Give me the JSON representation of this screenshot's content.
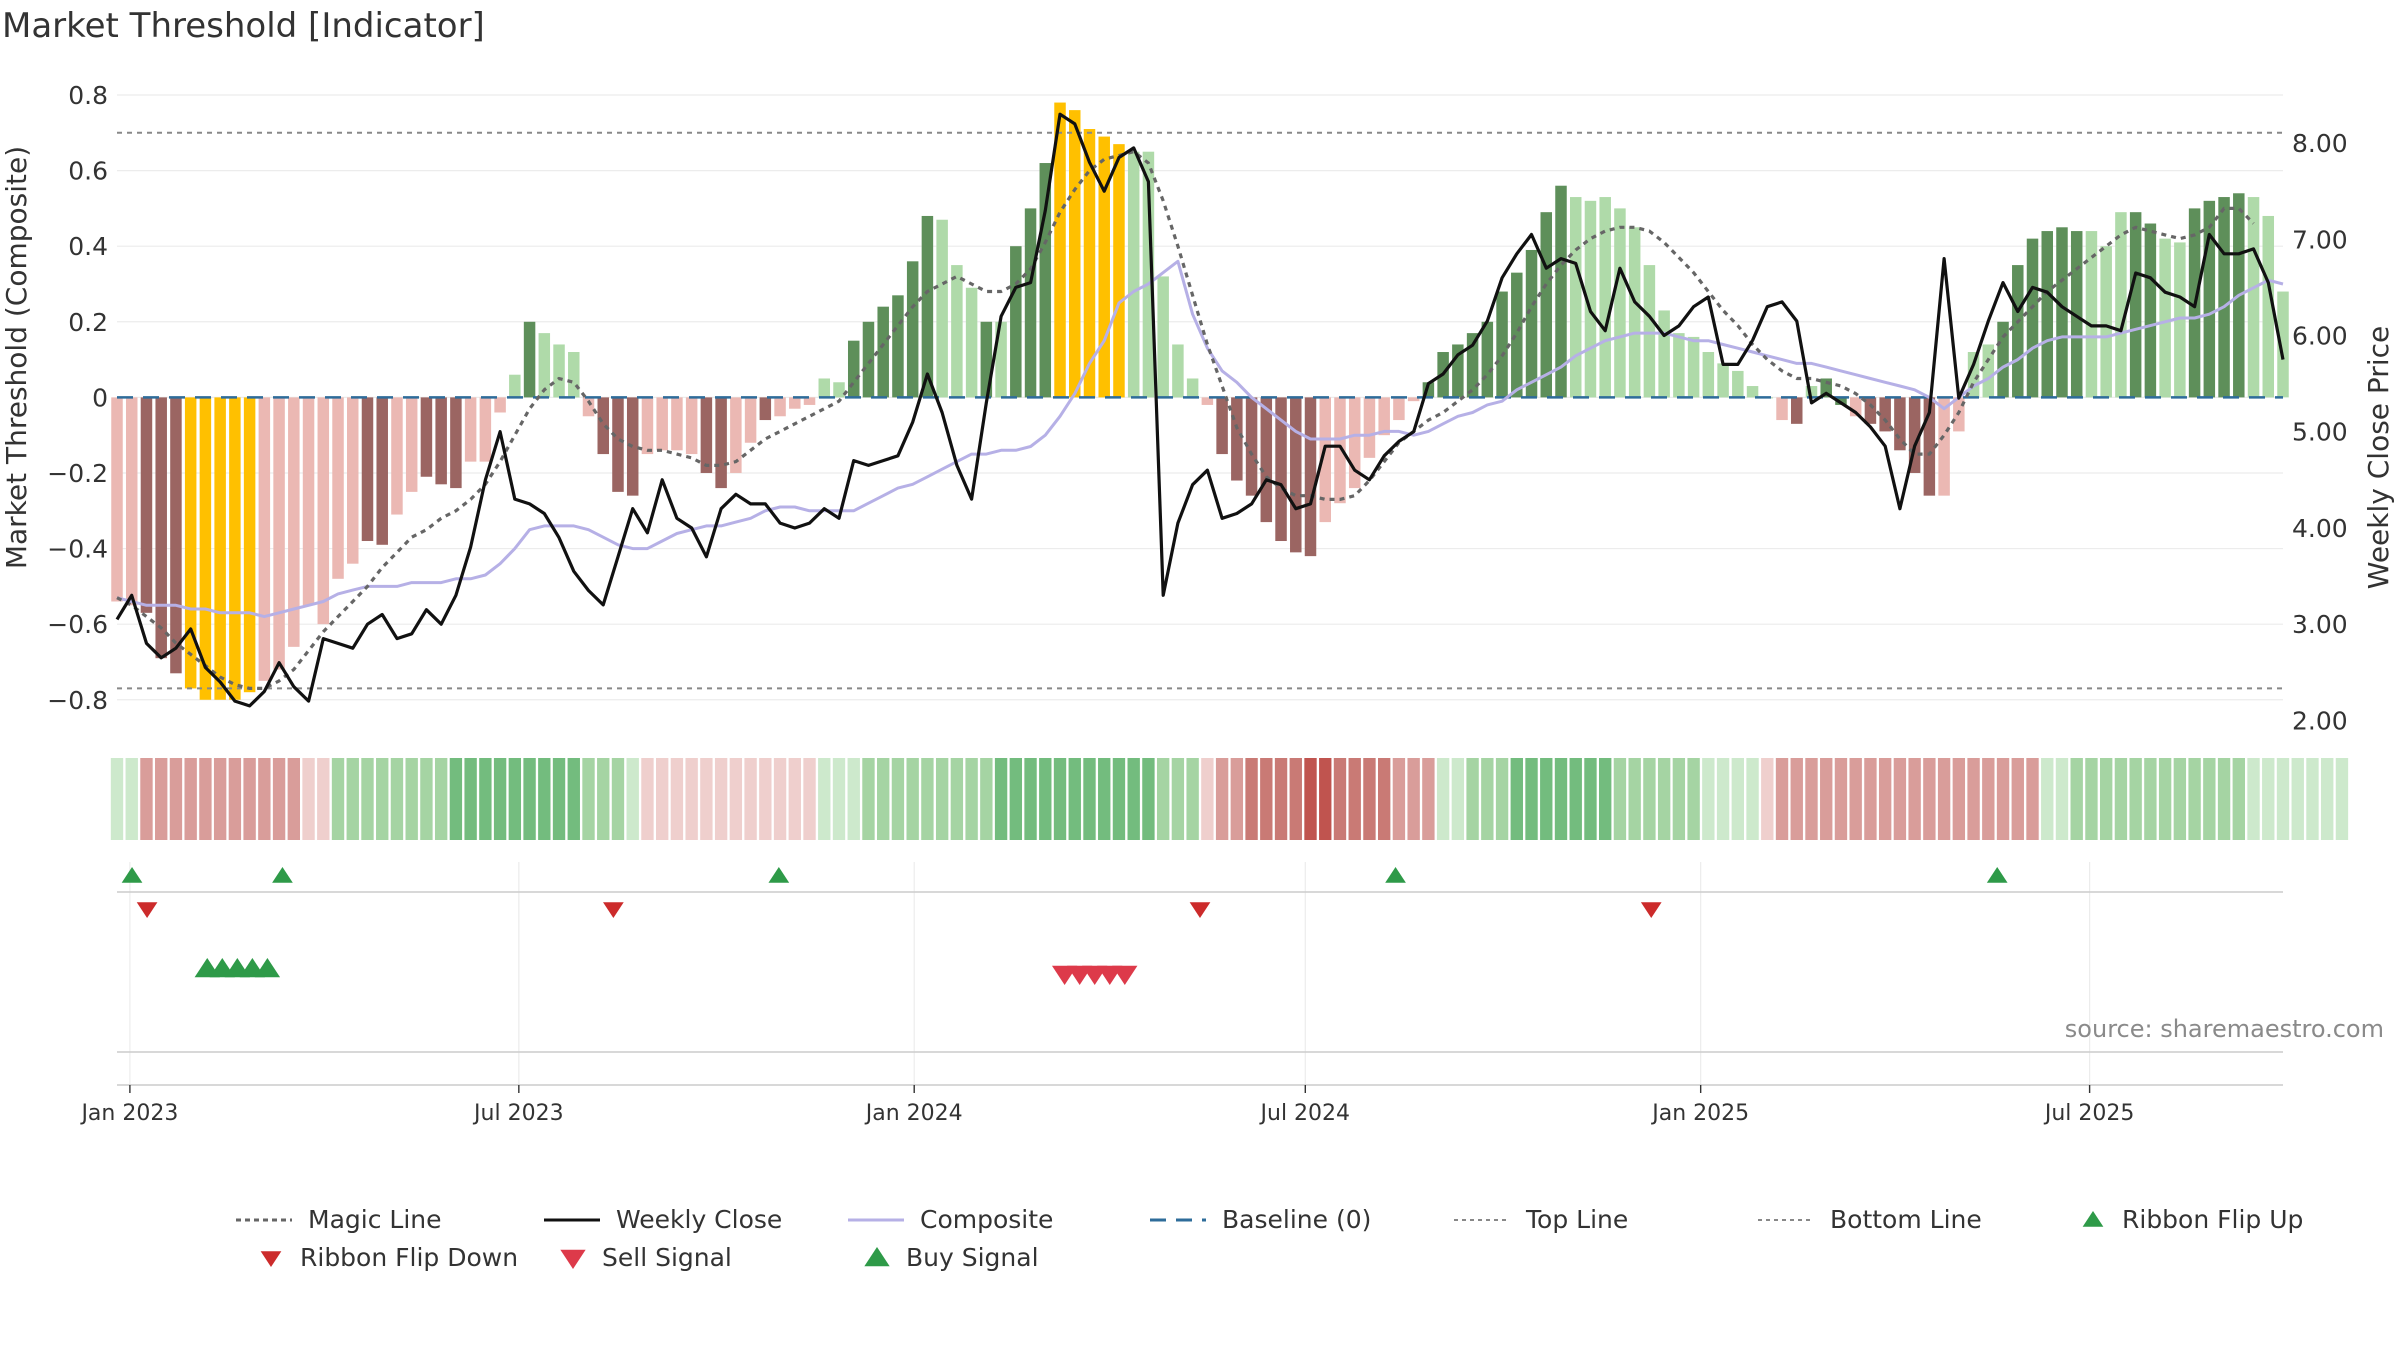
{
  "title": "Market Threshold [Indicator]",
  "source": "source: sharemaestro.com",
  "colors": {
    "magic": "#666666",
    "close": "#111111",
    "composite": "#b6b0e6",
    "baseline": "#2e6c9a",
    "threshold": "#888888",
    "extreme": "#ffc000",
    "pos_strong": "#5e8f5a",
    "pos_light": "#afdaa9",
    "neg_strong": "#9b6562",
    "neg_light": "#ebb8b3",
    "flip_up": "#2e9a48",
    "flip_down": "#cc2b2b",
    "sell": "#dd3a4a",
    "buy": "#2e9a48"
  },
  "legend": [
    {
      "label": "Magic Line",
      "kind": "dotted",
      "color": "#666666"
    },
    {
      "label": "Weekly Close",
      "kind": "solid",
      "color": "#111111"
    },
    {
      "label": "Composite",
      "kind": "solid",
      "color": "#b6b0e6"
    },
    {
      "label": "Baseline (0)",
      "kind": "dashed",
      "color": "#2e6c9a"
    },
    {
      "label": "Top Line",
      "kind": "fine",
      "color": "#888888"
    },
    {
      "label": "Bottom Line",
      "kind": "fine",
      "color": "#888888"
    },
    {
      "label": "Ribbon Flip Up",
      "kind": "tri-up-small",
      "color": "#2e9a48"
    },
    {
      "label": "Ribbon Flip Down",
      "kind": "tri-down-small",
      "color": "#cc2b2b"
    },
    {
      "label": "Sell Signal",
      "kind": "tri-down",
      "color": "#dd3a4a"
    },
    {
      "label": "Buy Signal",
      "kind": "tri-up",
      "color": "#2e9a48"
    }
  ],
  "chart_data": {
    "type": "bar",
    "x_start": "2022-12-26",
    "x_end": "2025-09-29",
    "left_axis": {
      "label": "Market Threshold (Composite)",
      "min": -0.88,
      "max": 0.8,
      "ticks": [
        0.8,
        0.6,
        0.4,
        0.2,
        0,
        -0.2,
        -0.4,
        -0.6,
        -0.8
      ],
      "tick_labels": [
        "0.8",
        "0.6",
        "0.4",
        "0.2",
        "0",
        "−0.2",
        "−0.4",
        "−0.6",
        "−0.8"
      ]
    },
    "right_axis": {
      "label": "Weekly Close Price",
      "min": 1.9,
      "max": 8.5,
      "ticks": [
        8,
        7,
        6,
        5,
        4,
        3,
        2
      ],
      "tick_labels": [
        "8.00",
        "7.00",
        "6.00",
        "5.00",
        "4.00",
        "3.00",
        "2.00"
      ]
    },
    "x_ticks": [
      {
        "date": "2023-01-01",
        "label": "Jan 2023"
      },
      {
        "date": "2023-07-01",
        "label": "Jul 2023"
      },
      {
        "date": "2024-01-01",
        "label": "Jan 2024"
      },
      {
        "date": "2024-07-01",
        "label": "Jul 2024"
      },
      {
        "date": "2025-01-01",
        "label": "Jan 2025"
      },
      {
        "date": "2025-07-01",
        "label": "Jul 2025"
      }
    ],
    "top_line": 0.7,
    "bottom_line": -0.77,
    "baseline": 0,
    "composite_bars": [
      -0.54,
      -0.55,
      -0.57,
      -0.69,
      -0.73,
      -0.77,
      -0.8,
      -0.8,
      -0.8,
      -0.78,
      -0.75,
      -0.72,
      -0.66,
      -0.55,
      -0.6,
      -0.48,
      -0.44,
      -0.38,
      -0.39,
      -0.31,
      -0.25,
      -0.21,
      -0.23,
      -0.24,
      -0.17,
      -0.17,
      -0.04,
      0.06,
      0.2,
      0.17,
      0.14,
      0.12,
      -0.05,
      -0.15,
      -0.25,
      -0.26,
      -0.15,
      -0.14,
      -0.14,
      -0.15,
      -0.2,
      -0.24,
      -0.2,
      -0.12,
      -0.06,
      -0.05,
      -0.03,
      -0.02,
      0.05,
      0.04,
      0.15,
      0.2,
      0.24,
      0.27,
      0.36,
      0.48,
      0.47,
      0.35,
      0.29,
      0.2,
      0.2,
      0.4,
      0.5,
      0.62,
      0.78,
      0.76,
      0.71,
      0.69,
      0.67,
      0.65,
      0.65,
      0.32,
      0.14,
      0.05,
      -0.02,
      -0.15,
      -0.22,
      -0.26,
      -0.33,
      -0.38,
      -0.41,
      -0.42,
      -0.33,
      -0.28,
      -0.24,
      -0.16,
      -0.1,
      -0.06,
      -0.01,
      0.04,
      0.12,
      0.14,
      0.17,
      0.2,
      0.28,
      0.33,
      0.39,
      0.49,
      0.56,
      0.53,
      0.52,
      0.53,
      0.5,
      0.45,
      0.35,
      0.23,
      0.17,
      0.16,
      0.12,
      0.09,
      0.07,
      0.03,
      0.0,
      -0.06,
      -0.07,
      0.03,
      0.05,
      -0.02,
      -0.05,
      -0.07,
      -0.09,
      -0.14,
      -0.2,
      -0.26,
      -0.26,
      -0.09,
      0.12,
      0.14,
      0.2,
      0.35,
      0.42,
      0.44,
      0.45,
      0.44,
      0.44,
      0.4,
      0.49,
      0.49,
      0.46,
      0.42,
      0.41,
      0.5,
      0.52,
      0.53,
      0.54,
      0.53,
      0.48,
      0.28
    ],
    "bar_styles": [
      "nl",
      "nl",
      "ns",
      "ns",
      "ns",
      "x",
      "x",
      "x",
      "x",
      "x",
      "nl",
      "nl",
      "nl",
      "nl",
      "nl",
      "nl",
      "nl",
      "ns",
      "ns",
      "nl",
      "nl",
      "ns",
      "ns",
      "ns",
      "nl",
      "nl",
      "nl",
      "pl",
      "ps",
      "pl",
      "pl",
      "pl",
      "nl",
      "ns",
      "ns",
      "ns",
      "nl",
      "nl",
      "nl",
      "nl",
      "ns",
      "ns",
      "nl",
      "nl",
      "ns",
      "nl",
      "nl",
      "nl",
      "pl",
      "pl",
      "ps",
      "ps",
      "ps",
      "ps",
      "ps",
      "ps",
      "pl",
      "pl",
      "pl",
      "ps",
      "pl",
      "ps",
      "ps",
      "ps",
      "x",
      "x",
      "x",
      "x",
      "x",
      "pl",
      "pl",
      "pl",
      "pl",
      "pl",
      "nl",
      "ns",
      "ns",
      "ns",
      "ns",
      "ns",
      "ns",
      "ns",
      "nl",
      "nl",
      "nl",
      "nl",
      "nl",
      "nl",
      "nl",
      "ps",
      "ps",
      "ps",
      "ps",
      "ps",
      "ps",
      "ps",
      "ps",
      "ps",
      "ps",
      "pl",
      "pl",
      "pl",
      "pl",
      "pl",
      "pl",
      "pl",
      "pl",
      "pl",
      "pl",
      "pl",
      "pl",
      "pl",
      "pl",
      "nl",
      "ns",
      "pl",
      "ps",
      "ps",
      "nl",
      "ns",
      "ns",
      "ns",
      "ns",
      "ns",
      "nl",
      "nl",
      "pl",
      "pl",
      "ps",
      "ps",
      "ps",
      "ps",
      "ps",
      "ps",
      "pl",
      "pl",
      "pl",
      "ps",
      "ps",
      "pl",
      "pl",
      "ps",
      "ps",
      "ps",
      "ps",
      "pl",
      "pl"
    ],
    "weekly_close": [
      3.05,
      3.3,
      2.8,
      2.65,
      2.75,
      2.95,
      2.55,
      2.4,
      2.2,
      2.15,
      2.3,
      2.6,
      2.35,
      2.2,
      2.85,
      2.8,
      2.75,
      3.0,
      3.1,
      2.85,
      2.9,
      3.15,
      3.0,
      3.3,
      3.8,
      4.5,
      5.0,
      4.3,
      4.25,
      4.15,
      3.9,
      3.55,
      3.35,
      3.2,
      3.7,
      4.2,
      3.95,
      4.5,
      4.1,
      4.0,
      3.7,
      4.2,
      4.35,
      4.25,
      4.25,
      4.05,
      4.0,
      4.05,
      4.2,
      4.1,
      4.7,
      4.65,
      4.7,
      4.75,
      5.1,
      5.6,
      5.2,
      4.65,
      4.3,
      5.3,
      6.2,
      6.5,
      6.55,
      7.3,
      8.3,
      8.2,
      7.8,
      7.5,
      7.85,
      7.95,
      7.6,
      3.3,
      4.05,
      4.45,
      4.6,
      4.1,
      4.15,
      4.25,
      4.5,
      4.45,
      4.2,
      4.25,
      4.85,
      4.85,
      4.6,
      4.5,
      4.75,
      4.9,
      5.0,
      5.5,
      5.6,
      5.8,
      5.9,
      6.15,
      6.6,
      6.85,
      7.05,
      6.7,
      6.8,
      6.75,
      6.25,
      6.05,
      6.7,
      6.35,
      6.2,
      6.0,
      6.1,
      6.3,
      6.4,
      5.7,
      5.7,
      5.95,
      6.3,
      6.35,
      6.15,
      5.3,
      5.4,
      5.3,
      5.2,
      5.05,
      4.85,
      4.2,
      4.85,
      5.2,
      6.8,
      5.35,
      5.7,
      6.15,
      6.55,
      6.25,
      6.5,
      6.45,
      6.3,
      6.2,
      6.1,
      6.1,
      6.05,
      6.65,
      6.6,
      6.45,
      6.4,
      6.3,
      7.05,
      6.85,
      6.85,
      6.9,
      6.55,
      5.75
    ],
    "composite_line": [
      -0.53,
      -0.54,
      -0.55,
      -0.55,
      -0.55,
      -0.56,
      -0.56,
      -0.57,
      -0.57,
      -0.57,
      -0.58,
      -0.57,
      -0.56,
      -0.55,
      -0.54,
      -0.52,
      -0.51,
      -0.5,
      -0.5,
      -0.5,
      -0.49,
      -0.49,
      -0.49,
      -0.48,
      -0.48,
      -0.47,
      -0.44,
      -0.4,
      -0.35,
      -0.34,
      -0.34,
      -0.34,
      -0.35,
      -0.37,
      -0.39,
      -0.4,
      -0.4,
      -0.38,
      -0.36,
      -0.35,
      -0.34,
      -0.34,
      -0.33,
      -0.32,
      -0.3,
      -0.29,
      -0.29,
      -0.3,
      -0.3,
      -0.3,
      -0.3,
      -0.28,
      -0.26,
      -0.24,
      -0.23,
      -0.21,
      -0.19,
      -0.17,
      -0.15,
      -0.15,
      -0.14,
      -0.14,
      -0.13,
      -0.1,
      -0.05,
      0.01,
      0.09,
      0.15,
      0.25,
      0.28,
      0.3,
      0.33,
      0.36,
      0.22,
      0.13,
      0.07,
      0.04,
      0.0,
      -0.03,
      -0.06,
      -0.09,
      -0.11,
      -0.11,
      -0.11,
      -0.1,
      -0.1,
      -0.09,
      -0.09,
      -0.1,
      -0.09,
      -0.07,
      -0.05,
      -0.04,
      -0.02,
      -0.01,
      0.02,
      0.04,
      0.06,
      0.08,
      0.11,
      0.13,
      0.15,
      0.16,
      0.17,
      0.17,
      0.17,
      0.16,
      0.15,
      0.15,
      0.14,
      0.13,
      0.12,
      0.11,
      0.1,
      0.09,
      0.09,
      0.08,
      0.07,
      0.06,
      0.05,
      0.04,
      0.03,
      0.02,
      0.0,
      -0.03,
      0.0,
      0.03,
      0.05,
      0.08,
      0.1,
      0.13,
      0.15,
      0.16,
      0.16,
      0.16,
      0.16,
      0.17,
      0.18,
      0.19,
      0.2,
      0.21,
      0.21,
      0.22,
      0.24,
      0.27,
      0.29,
      0.31,
      0.3
    ],
    "magic_line": [
      -0.53,
      -0.55,
      -0.58,
      -0.61,
      -0.65,
      -0.68,
      -0.71,
      -0.74,
      -0.76,
      -0.77,
      -0.77,
      -0.75,
      -0.72,
      -0.67,
      -0.62,
      -0.58,
      -0.54,
      -0.5,
      -0.45,
      -0.41,
      -0.37,
      -0.35,
      -0.32,
      -0.3,
      -0.27,
      -0.23,
      -0.17,
      -0.1,
      -0.03,
      0.02,
      0.05,
      0.04,
      -0.01,
      -0.07,
      -0.11,
      -0.13,
      -0.14,
      -0.14,
      -0.15,
      -0.16,
      -0.18,
      -0.18,
      -0.17,
      -0.14,
      -0.11,
      -0.09,
      -0.07,
      -0.05,
      -0.03,
      -0.01,
      0.04,
      0.09,
      0.14,
      0.19,
      0.24,
      0.28,
      0.3,
      0.32,
      0.3,
      0.28,
      0.28,
      0.3,
      0.34,
      0.41,
      0.49,
      0.55,
      0.6,
      0.63,
      0.64,
      0.65,
      0.62,
      0.52,
      0.4,
      0.27,
      0.14,
      0.03,
      -0.08,
      -0.15,
      -0.21,
      -0.24,
      -0.26,
      -0.26,
      -0.27,
      -0.27,
      -0.26,
      -0.22,
      -0.17,
      -0.12,
      -0.09,
      -0.06,
      -0.04,
      -0.01,
      0.02,
      0.06,
      0.11,
      0.17,
      0.24,
      0.3,
      0.35,
      0.39,
      0.42,
      0.44,
      0.45,
      0.45,
      0.44,
      0.41,
      0.37,
      0.33,
      0.28,
      0.23,
      0.19,
      0.14,
      0.1,
      0.07,
      0.05,
      0.05,
      0.04,
      0.03,
      0.01,
      -0.02,
      -0.06,
      -0.11,
      -0.15,
      -0.15,
      -0.1,
      -0.04,
      0.04,
      0.1,
      0.16,
      0.2,
      0.24,
      0.28,
      0.31,
      0.34,
      0.37,
      0.4,
      0.43,
      0.45,
      0.44,
      0.43,
      0.42,
      0.43,
      0.45,
      0.5,
      0.5,
      0.46
    ],
    "ribbon": [
      "gl",
      "gl",
      "rm",
      "rm",
      "rm",
      "rm",
      "rm",
      "rm",
      "rm",
      "rm",
      "rm",
      "rm",
      "rm",
      "rl",
      "rl",
      "gm",
      "gm",
      "gm",
      "gm",
      "gm",
      "gm",
      "gm",
      "gm",
      "gs",
      "gs",
      "gs",
      "gs",
      "gs",
      "gs",
      "gs",
      "gs",
      "gs",
      "gm",
      "gm",
      "gm",
      "gl",
      "rl",
      "rl",
      "rl",
      "rl",
      "rl",
      "rl",
      "rl",
      "rl",
      "rl",
      "rl",
      "rl",
      "rl",
      "gl",
      "gl",
      "gl",
      "gm",
      "gm",
      "gm",
      "gm",
      "gm",
      "gm",
      "gm",
      "gm",
      "gm",
      "gs",
      "gs",
      "gs",
      "gs",
      "gs",
      "gs",
      "gs",
      "gs",
      "gs",
      "gs",
      "gs",
      "gm",
      "gm",
      "gm",
      "rl",
      "rm",
      "rm",
      "rs",
      "rs",
      "rs",
      "rs",
      "rx",
      "rx",
      "rs",
      "rs",
      "rs",
      "rs",
      "rm",
      "rm",
      "rm",
      "gl",
      "gl",
      "gm",
      "gm",
      "gm",
      "gs",
      "gs",
      "gs",
      "gs",
      "gs",
      "gs",
      "gs",
      "gm",
      "gm",
      "gm",
      "gm",
      "gm",
      "gm",
      "gl",
      "gl",
      "gl",
      "gl",
      "rl",
      "rm",
      "rm",
      "rm",
      "rm",
      "rm",
      "rm",
      "rm",
      "rm",
      "rm",
      "rm",
      "rm",
      "rm",
      "rm",
      "rm",
      "rm",
      "rm",
      "rm",
      "rm",
      "gl",
      "gl",
      "gm",
      "gm",
      "gm",
      "gm",
      "gm",
      "gm",
      "gm",
      "gm",
      "gm",
      "gm",
      "gm",
      "gm",
      "gl",
      "gl",
      "gl",
      "gl",
      "gl",
      "gl",
      "gl"
    ],
    "ribbon_flip_up": [
      "2023-01-02",
      "2023-03-13",
      "2023-10-30",
      "2024-08-12",
      "2025-05-19"
    ],
    "ribbon_flip_down": [
      "2023-01-09",
      "2023-08-14",
      "2024-05-13",
      "2024-12-09"
    ],
    "buy_signals": [
      "2023-02-06",
      "2023-02-13",
      "2023-02-20",
      "2023-02-27",
      "2023-03-06"
    ],
    "sell_signals": [
      "2024-03-11",
      "2024-03-18",
      "2024-03-25",
      "2024-04-01",
      "2024-04-08"
    ]
  }
}
